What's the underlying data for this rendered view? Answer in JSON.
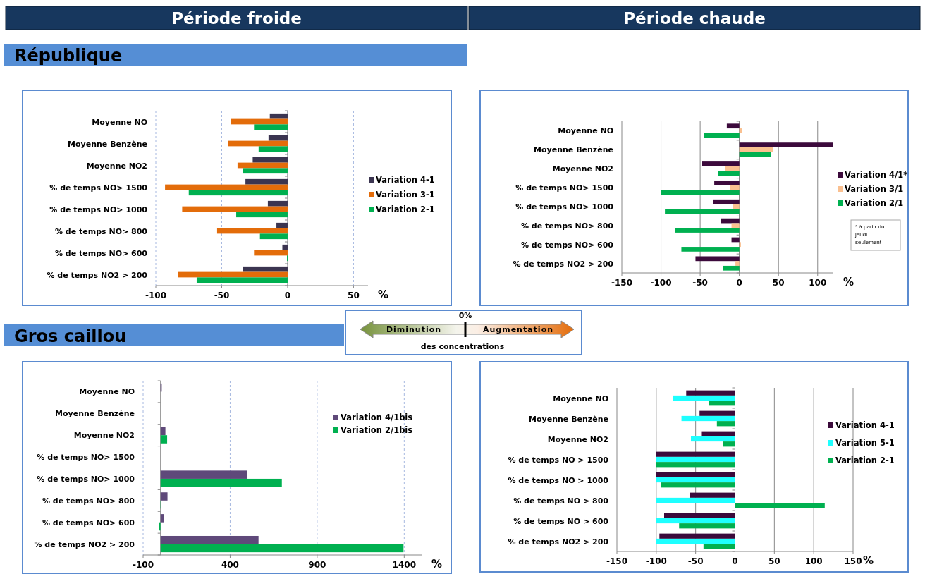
{
  "chart_data": [
    {
      "type": "bar",
      "orientation": "horizontal",
      "subtitle": "Période froide",
      "title": "République",
      "xlabel": "%",
      "categories": [
        "Moyenne NO",
        "Moyenne Benzène",
        "Moyenne NO2",
        "% de temps NO> 1500",
        "% de temps NO> 1000",
        "% de temps NO> 800",
        "% de temps NO> 600",
        "% de temps NO2 > 200"
      ],
      "xlim": [
        -100,
        61
      ],
      "xticks": [
        -100,
        -50,
        0,
        50
      ],
      "grid": "x",
      "legend": "right",
      "series": [
        {
          "name": "Variation 4-1",
          "color": "#3b3551",
          "values": [
            -13.5,
            -14.5,
            -26.5,
            -32,
            -15,
            -8.5,
            -4,
            -34
          ]
        },
        {
          "name": "Variation 3-1",
          "color": "#e36c0a",
          "values": [
            -43,
            -45,
            -38,
            -93,
            -80,
            -53.5,
            -25.5,
            -83
          ]
        },
        {
          "name": "Variation 2-1",
          "color": "#00b050",
          "values": [
            -25.5,
            -22,
            -34,
            -75,
            -39,
            -21,
            -0.5,
            -69
          ]
        }
      ]
    },
    {
      "type": "bar",
      "orientation": "horizontal",
      "subtitle": "Période chaude",
      "xlabel": "%",
      "annotations": [
        "* à partir du jeudi seulement"
      ],
      "categories": [
        "Moyenne NO",
        "Moyenne Benzène",
        "Moyenne NO2",
        "% de temps NO> 1500",
        "% de temps NO> 1000",
        "% de temps NO> 800",
        "% de temps NO> 600",
        "% de temps NO2 > 200"
      ],
      "xlim": [
        -150,
        120
      ],
      "xticks": [
        -150,
        -100,
        -50,
        0,
        50,
        100
      ],
      "grid": "x",
      "legend": "right",
      "series": [
        {
          "name": "Variation 4/1*",
          "color": "#3c0a3c",
          "values": [
            -16,
            120,
            -48,
            -32,
            -33,
            -24,
            -10,
            -56
          ]
        },
        {
          "name": "Variation 3/1",
          "color": "#fac090",
          "values": [
            3,
            43,
            -18,
            -12,
            -8,
            -10,
            2,
            -5
          ]
        },
        {
          "name": "Variation 2/1",
          "color": "#00b050",
          "values": [
            -45,
            40,
            -27,
            -100,
            -95,
            -82,
            -74,
            -21
          ]
        }
      ]
    },
    {
      "type": "bar",
      "orientation": "horizontal",
      "title": "Gros caillou",
      "xlabel": "%",
      "categories": [
        "Moyenne NO",
        "Moyenne Benzène",
        "Moyenne NO2",
        "% de temps NO> 1500",
        "% de temps NO> 1000",
        "% de temps NO> 800",
        "% de temps NO> 600",
        "% de temps NO2 > 200"
      ],
      "xlim": [
        -100,
        1500
      ],
      "xticks": [
        -100,
        400,
        900,
        1400
      ],
      "grid": "x",
      "legend": "top right",
      "series": [
        {
          "name": "Variation 4/1bis",
          "color": "#5f497a",
          "values": [
            7,
            null,
            28,
            null,
            496,
            40,
            20,
            563
          ]
        },
        {
          "name": "Variation 2/1bis",
          "color": "#00b050",
          "values": [
            null,
            null,
            38,
            null,
            697,
            5,
            -9,
            1396
          ]
        }
      ]
    },
    {
      "type": "bar",
      "orientation": "horizontal",
      "xlabel": "%",
      "categories": [
        "Moyenne NO",
        "Moyenne Benzène",
        "Moyenne NO2",
        "% de temps NO > 1500",
        "% de temps NO > 1000",
        "% de temps NO > 800",
        "% de temps NO > 600",
        "% de temps NO2 > 200"
      ],
      "xlim": [
        -150,
        150
      ],
      "xticks": [
        -150,
        -100,
        -50,
        0,
        50,
        100,
        150
      ],
      "grid": "x",
      "legend": "right",
      "series": [
        {
          "name": "Variation 4-1",
          "color": "#3b0a3b",
          "values": [
            -62,
            -45,
            -43,
            -100,
            -100,
            -57,
            -90,
            -96
          ]
        },
        {
          "name": "Variation 5-1",
          "color": "#1effff",
          "values": [
            -79,
            -68,
            -56,
            -100,
            -100,
            -100,
            -100,
            -100
          ]
        },
        {
          "name": "Variation 2-1",
          "color": "#00b050",
          "values": [
            -33,
            -23,
            -15,
            -100,
            -94,
            114,
            -71,
            -40
          ]
        }
      ]
    },
    {
      "type": "other",
      "annotations": [
        "0%",
        "Diminution",
        "Augmentation",
        "des concentrations"
      ]
    }
  ]
}
